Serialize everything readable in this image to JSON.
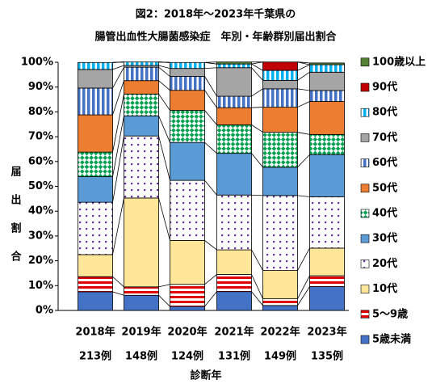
{
  "chart_data": {
    "type": "stacked_bar",
    "title": [
      "図2：2018年～2023年千葉県の",
      "腸管出血性大腸菌感染症　年別・年齢群別届出割合"
    ],
    "y_label": "届出割合",
    "x_label": "診断年",
    "categories": [
      "2018年",
      "2019年",
      "2020年",
      "2021年",
      "2022年",
      "2023年"
    ],
    "case_counts": [
      "213例",
      "148例",
      "124例",
      "131例",
      "149例",
      "135例"
    ],
    "ylim": [
      0,
      100
    ],
    "yticks": [
      {
        "value": 0,
        "label": "0%"
      },
      {
        "value": 10,
        "label": "10%"
      },
      {
        "value": 20,
        "label": "20%"
      },
      {
        "value": 30,
        "label": "30%"
      },
      {
        "value": 40,
        "label": "40%"
      },
      {
        "value": 50,
        "label": "50%"
      },
      {
        "value": 60,
        "label": "60%"
      },
      {
        "value": 70,
        "label": "70%"
      },
      {
        "value": 80,
        "label": "80%"
      },
      {
        "value": 90,
        "label": "90%"
      },
      {
        "value": 100,
        "label": "100%"
      }
    ],
    "legend": "right",
    "series": [
      {
        "name": "5歳未満",
        "color": "#4472c4",
        "pattern": "solid",
        "values": [
          7.5,
          6.1,
          1.6,
          7.6,
          2.0,
          9.6
        ]
      },
      {
        "name": "5～9歳",
        "color": "#e00000",
        "pattern": "hstripe",
        "values": [
          6.1,
          3.4,
          8.9,
          6.9,
          2.7,
          4.4
        ]
      },
      {
        "name": "10代",
        "color": "#ffe699",
        "pattern": "solid",
        "values": [
          8.9,
          35.8,
          17.7,
          9.9,
          11.4,
          11.1
        ]
      },
      {
        "name": "20代",
        "color": "#7030a0",
        "pattern": "dots",
        "values": [
          21.1,
          25.0,
          24.2,
          22.1,
          30.2,
          20.7
        ]
      },
      {
        "name": "30代",
        "color": "#5b9bd5",
        "pattern": "solid",
        "values": [
          10.3,
          8.1,
          15.3,
          16.8,
          11.4,
          17.0
        ]
      },
      {
        "name": "40代",
        "color": "#00a050",
        "pattern": "check",
        "values": [
          9.9,
          8.8,
          12.9,
          11.5,
          14.1,
          8.1
        ]
      },
      {
        "name": "50代",
        "color": "#ed7d31",
        "pattern": "solid",
        "values": [
          15.0,
          5.4,
          8.1,
          6.9,
          10.1,
          13.3
        ]
      },
      {
        "name": "60代",
        "color": "#4472c4",
        "pattern": "vstripe",
        "values": [
          10.8,
          5.4,
          5.6,
          4.6,
          7.4,
          4.4
        ]
      },
      {
        "name": "70代",
        "color": "#a5a5a5",
        "pattern": "solid",
        "values": [
          7.5,
          0.7,
          3.2,
          11.5,
          3.4,
          7.4
        ]
      },
      {
        "name": "80代",
        "color": "#00b0f0",
        "pattern": "vstripe",
        "values": [
          2.8,
          1.4,
          2.4,
          1.5,
          4.0,
          3.0
        ]
      },
      {
        "name": "90代",
        "color": "#c00000",
        "pattern": "solid",
        "values": [
          0,
          0,
          0,
          0,
          3.4,
          0
        ]
      },
      {
        "name": "100歳以上",
        "color": "#548235",
        "pattern": "solid",
        "values": [
          0,
          0,
          0,
          0.8,
          0,
          0.7
        ]
      }
    ]
  }
}
